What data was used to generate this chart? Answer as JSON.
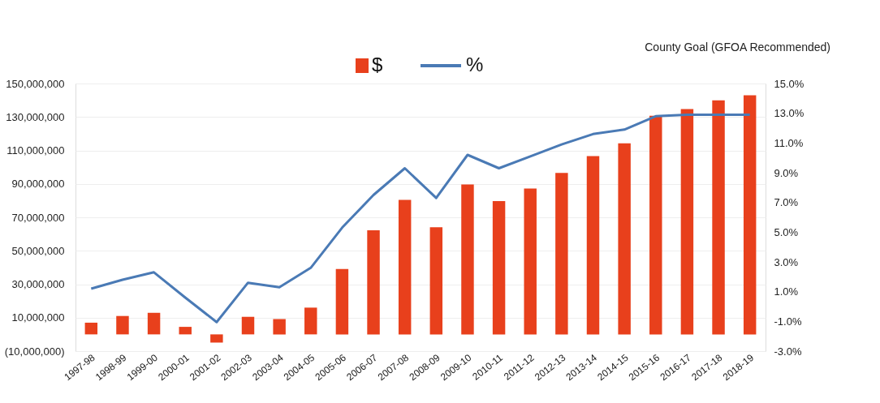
{
  "chart_data": {
    "type": "bar",
    "categories": [
      "1997-98",
      "1998-99",
      "1999-00",
      "2000-01",
      "2001-02",
      "2002-03",
      "2003-04",
      "2004-05",
      "2005-06",
      "2006-07",
      "2007-08",
      "2008-09",
      "2009-10",
      "2010-11",
      "2011-12",
      "2012-13",
      "2013-14",
      "2014-15",
      "2015-16",
      "2016-17",
      "2017-18",
      "2018-19"
    ],
    "series": [
      {
        "name": "$",
        "color": "#e8401c",
        "values": [
          7000000,
          11000000,
          12900000,
          4500000,
          -4900000,
          10500000,
          9200000,
          16000000,
          39100000,
          62300000,
          80400000,
          64100000,
          89600000,
          79700000,
          87200000,
          96500000,
          106600000,
          114200000,
          130700000,
          134700000,
          139900000,
          143000000
        ]
      },
      {
        "name": "%",
        "type": "line",
        "axis": "y2",
        "color": "#4a7ab5",
        "values": [
          1.2,
          1.8,
          2.3,
          0.6,
          -1.05,
          1.6,
          1.3,
          2.6,
          5.3,
          7.5,
          9.3,
          7.3,
          10.2,
          9.3,
          10.1,
          10.9,
          11.6,
          11.9,
          12.8,
          12.9,
          12.9,
          12.9
        ]
      }
    ],
    "ylim": [
      -10000000,
      150000000
    ],
    "yticks": [
      {
        "value": -10000000,
        "label": "(10,000,000)"
      },
      {
        "value": 10000000,
        "label": "10,000,000"
      },
      {
        "value": 30000000,
        "label": "30,000,000"
      },
      {
        "value": 50000000,
        "label": "50,000,000"
      },
      {
        "value": 70000000,
        "label": "70,000,000"
      },
      {
        "value": 90000000,
        "label": "90,000,000"
      },
      {
        "value": 110000000,
        "label": "110,000,000"
      },
      {
        "value": 130000000,
        "label": "130,000,000"
      },
      {
        "value": 150000000,
        "label": "150,000,000"
      }
    ],
    "y2lim": [
      -3,
      15
    ],
    "y2ticks": [
      {
        "value": -3,
        "label": "-3.0%"
      },
      {
        "value": -1,
        "label": "-1.0%"
      },
      {
        "value": 1,
        "label": "1.0%"
      },
      {
        "value": 3,
        "label": "3.0%"
      },
      {
        "value": 5,
        "label": "5.0%"
      },
      {
        "value": 7,
        "label": "7.0%"
      },
      {
        "value": 9,
        "label": "9.0%"
      },
      {
        "value": 11,
        "label": "11.0%"
      },
      {
        "value": 13,
        "label": "13.0%"
      },
      {
        "value": 15,
        "label": "15.0%"
      }
    ],
    "annotations": [
      "County Goal (GFOA Recommended)"
    ],
    "grid": "y",
    "legend": "top"
  }
}
